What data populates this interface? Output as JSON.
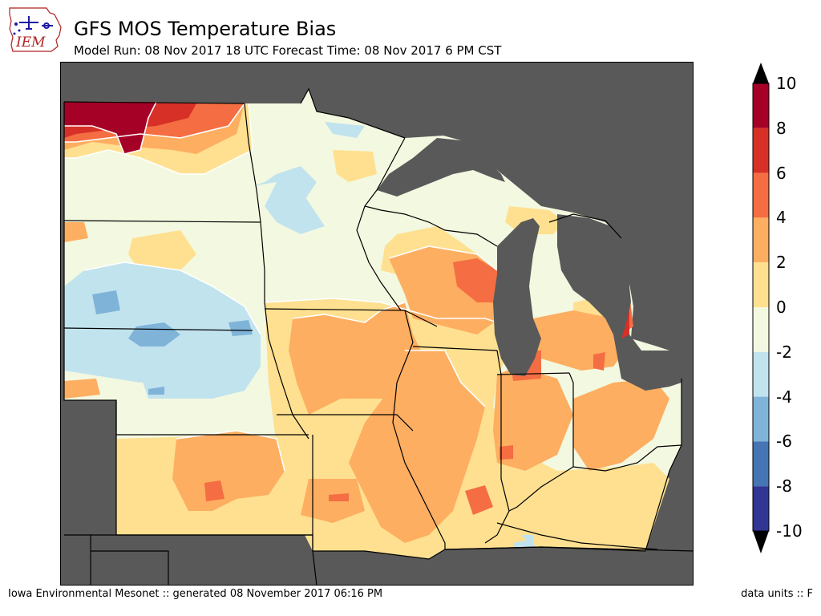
{
  "header": {
    "logo_text": "IEM",
    "title": "GFS MOS Temperature Bias",
    "subtitle": "Model Run: 08 Nov 2017 18 UTC Forecast Time: 08 Nov 2017 6 PM CST"
  },
  "legend": {
    "ticks": [
      "10",
      "8",
      "6",
      "4",
      "2",
      "0",
      "-2",
      "-4",
      "-6",
      "-8",
      "-10"
    ],
    "bins": [
      {
        "from": 8,
        "to": 10,
        "color": "#a50026"
      },
      {
        "from": 6,
        "to": 8,
        "color": "#d73027"
      },
      {
        "from": 4,
        "to": 6,
        "color": "#f46d43"
      },
      {
        "from": 2,
        "to": 4,
        "color": "#fdae61"
      },
      {
        "from": 0,
        "to": 2,
        "color": "#fee090"
      },
      {
        "from": -2,
        "to": 0,
        "color": "#f3f8e0"
      },
      {
        "from": -4,
        "to": -2,
        "color": "#c1e3ee"
      },
      {
        "from": -6,
        "to": -4,
        "color": "#7fb4d8"
      },
      {
        "from": -8,
        "to": -6,
        "color": "#4575b4"
      },
      {
        "from": -10,
        "to": -8,
        "color": "#313695"
      }
    ],
    "over_color": "#000000",
    "under_color": "#000000"
  },
  "map": {
    "land_masked_color": "#595959",
    "lake_color": "#595959"
  },
  "footer": {
    "credit": "Iowa Environmental Mesonet :: generated 08 November 2017 06:16 PM",
    "units": "data units :: F"
  }
}
